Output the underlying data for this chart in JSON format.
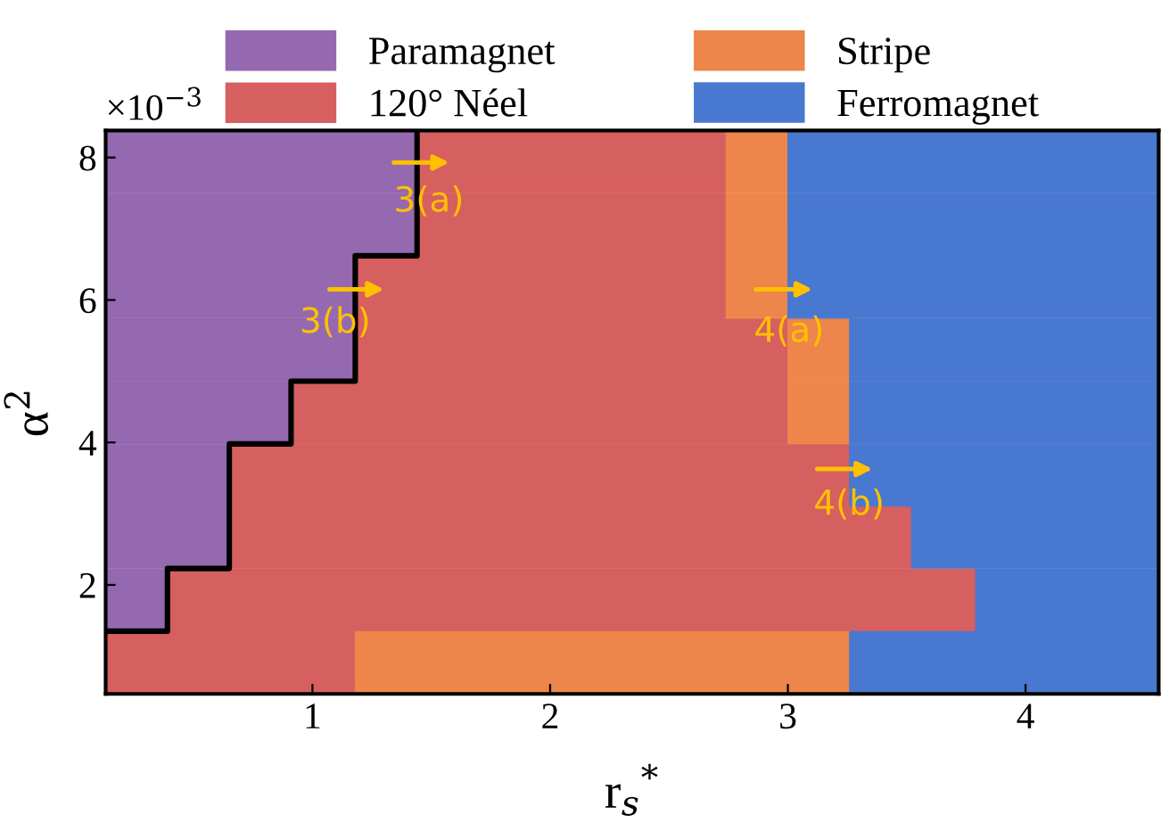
{
  "chart_data": {
    "type": "bar",
    "orientation": "horizontal",
    "stacked": true,
    "xlabel": "r$_{s}$$^{*}$",
    "ylabel": "α$^{2}$",
    "x": [
      0.91,
      1.79,
      2.67,
      3.54,
      4.42,
      5.3,
      6.18,
      7.06,
      7.94
    ],
    "series": [
      {
        "name": "Paramagnet",
        "color": "#9569b0",
        "values": [
          null,
          0.39,
          0.65,
          0.65,
          0.91,
          1.18,
          1.18,
          1.44,
          1.44
        ]
      },
      {
        "name": "120° Néel",
        "color": "#d65f5f",
        "values": [
          1.18,
          3.4,
          2.87,
          2.61,
          2.09,
          1.82,
          1.56,
          1.3,
          1.3
        ]
      },
      {
        "name": "Stripe",
        "color": "#ee854a",
        "values": [
          2.08,
          null,
          null,
          null,
          0.26,
          0.26,
          0.26,
          0.26,
          0.26
        ]
      },
      {
        "name": "Ferromagnet",
        "color": "#4878cf",
        "values": [
          1.3,
          0.77,
          1.04,
          1.3,
          1.3,
          1.3,
          1.56,
          1.56,
          1.56
        ]
      },
      {
        "type": "line",
        "color": "#000000",
        "x": [
          1.35,
          1.35,
          2.23,
          2.23,
          3.98,
          3.98,
          4.86,
          4.86,
          6.62,
          6.62,
          8.38
        ],
        "values": [
          0.13,
          0.39,
          0.39,
          0.65,
          0.65,
          0.91,
          0.91,
          1.18,
          1.18,
          1.44,
          1.44
        ]
      }
    ],
    "xlim": [
      0.13,
      4.56
    ],
    "ylim": [
      0.47,
      8.38
    ],
    "xticks": [
      1,
      2,
      3,
      4
    ],
    "yticks": [
      2,
      4,
      6,
      8
    ],
    "legend": "top",
    "grid": false,
    "annotations": [
      "×10$^{−3}$",
      "3(a)",
      "3(b)",
      "4(a)",
      "4(b)"
    ]
  }
}
